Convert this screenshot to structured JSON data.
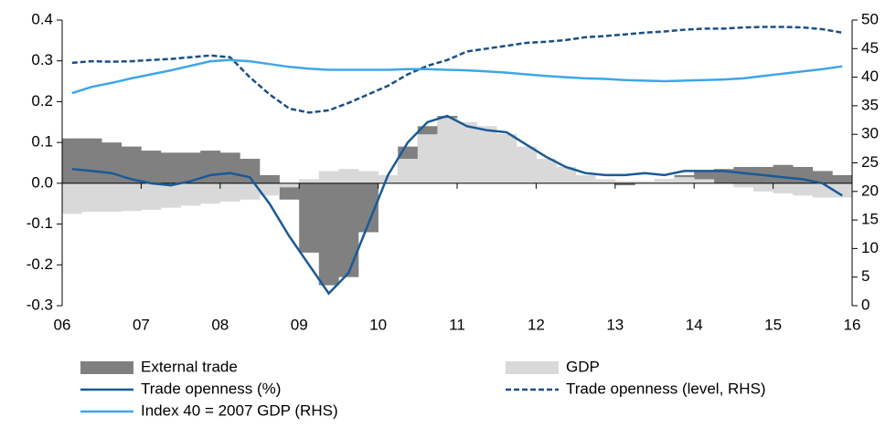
{
  "chart_data": {
    "type": "bar",
    "x": [
      2006.125,
      2006.375,
      2006.625,
      2006.875,
      2007.125,
      2007.375,
      2007.625,
      2007.875,
      2008.125,
      2008.375,
      2008.625,
      2008.875,
      2009.125,
      2009.375,
      2009.625,
      2009.875,
      2010.125,
      2010.375,
      2010.625,
      2010.875,
      2011.125,
      2011.375,
      2011.625,
      2011.875,
      2012.125,
      2012.375,
      2012.625,
      2012.875,
      2013.125,
      2013.375,
      2013.625,
      2013.875,
      2014.125,
      2014.375,
      2014.625,
      2014.875,
      2015.125,
      2015.375,
      2015.625,
      2015.875
    ],
    "xlim": [
      2006,
      2016
    ],
    "xticks": [
      {
        "value": 2006,
        "label": "06"
      },
      {
        "value": 2007,
        "label": "07"
      },
      {
        "value": 2008,
        "label": "08"
      },
      {
        "value": 2009,
        "label": "09"
      },
      {
        "value": 2010,
        "label": "10"
      },
      {
        "value": 2011,
        "label": "11"
      },
      {
        "value": 2012,
        "label": "12"
      },
      {
        "value": 2013,
        "label": "13"
      },
      {
        "value": 2014,
        "label": "14"
      },
      {
        "value": 2015,
        "label": "15"
      },
      {
        "value": 2016,
        "label": "16"
      }
    ],
    "ylim": [
      -0.3,
      0.4
    ],
    "yticks": [
      {
        "value": -0.3,
        "label": "-0.3"
      },
      {
        "value": -0.2,
        "label": "-0.2"
      },
      {
        "value": -0.1,
        "label": "-0.1"
      },
      {
        "value": 0,
        "label": "0.0"
      },
      {
        "value": 0.1,
        "label": "0.1"
      },
      {
        "value": 0.2,
        "label": "0.2"
      },
      {
        "value": 0.3,
        "label": "0.3"
      },
      {
        "value": 0.4,
        "label": "0.4"
      }
    ],
    "y2lim": [
      0,
      50
    ],
    "y2ticks": [
      0,
      5,
      10,
      15,
      20,
      25,
      30,
      35,
      40,
      45,
      50
    ],
    "series": [
      {
        "name": "External trade",
        "type": "bar",
        "color": "#808080",
        "values": [
          0.11,
          0.11,
          0.1,
          0.09,
          0.08,
          0.075,
          0.075,
          0.08,
          0.075,
          0.06,
          0.02,
          -0.04,
          -0.17,
          -0.25,
          -0.23,
          -0.12,
          0.0,
          0.09,
          0.14,
          0.165,
          0.14,
          0.125,
          0.12,
          0.08,
          0.05,
          0.03,
          0.01,
          0.0,
          -0.005,
          0.0,
          0.01,
          0.02,
          0.03,
          0.035,
          0.04,
          0.04,
          0.045,
          0.04,
          0.03,
          0.02
        ]
      },
      {
        "name": "GDP",
        "type": "bar",
        "color": "#d9d9d9",
        "values": [
          -0.075,
          -0.07,
          -0.07,
          -0.068,
          -0.065,
          -0.06,
          -0.055,
          -0.05,
          -0.045,
          -0.04,
          -0.03,
          -0.01,
          0.01,
          0.03,
          0.035,
          0.03,
          0.02,
          0.06,
          0.12,
          0.16,
          0.15,
          0.14,
          0.12,
          0.09,
          0.06,
          0.04,
          0.02,
          0.01,
          0.005,
          0.005,
          0.01,
          0.015,
          0.01,
          0.0,
          -0.01,
          -0.02,
          -0.025,
          -0.03,
          -0.035,
          -0.035
        ]
      },
      {
        "name": "Trade openness (%)",
        "type": "line",
        "color": "#1a5a96",
        "values": [
          0.035,
          0.03,
          0.025,
          0.01,
          0.0,
          -0.005,
          0.005,
          0.02,
          0.025,
          0.015,
          -0.05,
          -0.13,
          -0.2,
          -0.27,
          -0.22,
          -0.1,
          0.02,
          0.1,
          0.15,
          0.165,
          0.14,
          0.13,
          0.125,
          0.095,
          0.065,
          0.04,
          0.025,
          0.02,
          0.02,
          0.025,
          0.02,
          0.03,
          0.03,
          0.03,
          0.025,
          0.02,
          0.015,
          0.01,
          0.0,
          -0.03
        ]
      },
      {
        "name": "Trade openness (level, RHS)",
        "type": "line",
        "dash": true,
        "axis": "y2",
        "color": "#1a4f85",
        "values": [
          42.5,
          42.8,
          42.7,
          42.8,
          43,
          43.2,
          43.5,
          43.8,
          43.5,
          40,
          37,
          34.5,
          33.8,
          34.2,
          35.5,
          37,
          38.5,
          40.5,
          42,
          43,
          44.5,
          45,
          45.5,
          46,
          46.2,
          46.5,
          47,
          47.2,
          47.5,
          47.8,
          48,
          48.3,
          48.5,
          48.5,
          48.7,
          48.8,
          48.8,
          48.7,
          48.4,
          47.8
        ]
      },
      {
        "name": "Index 40 = 2007 GDP (RHS)",
        "type": "line",
        "axis": "y2",
        "color": "#3ea6e8",
        "values": [
          37.2,
          38.3,
          39,
          39.8,
          40.5,
          41.2,
          42,
          42.8,
          43,
          42.8,
          42.3,
          41.8,
          41.5,
          41.3,
          41.3,
          41.3,
          41.3,
          41.4,
          41.4,
          41.3,
          41.2,
          41,
          40.8,
          40.5,
          40.2,
          40,
          39.8,
          39.7,
          39.5,
          39.4,
          39.3,
          39.4,
          39.5,
          39.6,
          39.8,
          40.2,
          40.6,
          41.0,
          41.4,
          41.9
        ]
      }
    ]
  }
}
